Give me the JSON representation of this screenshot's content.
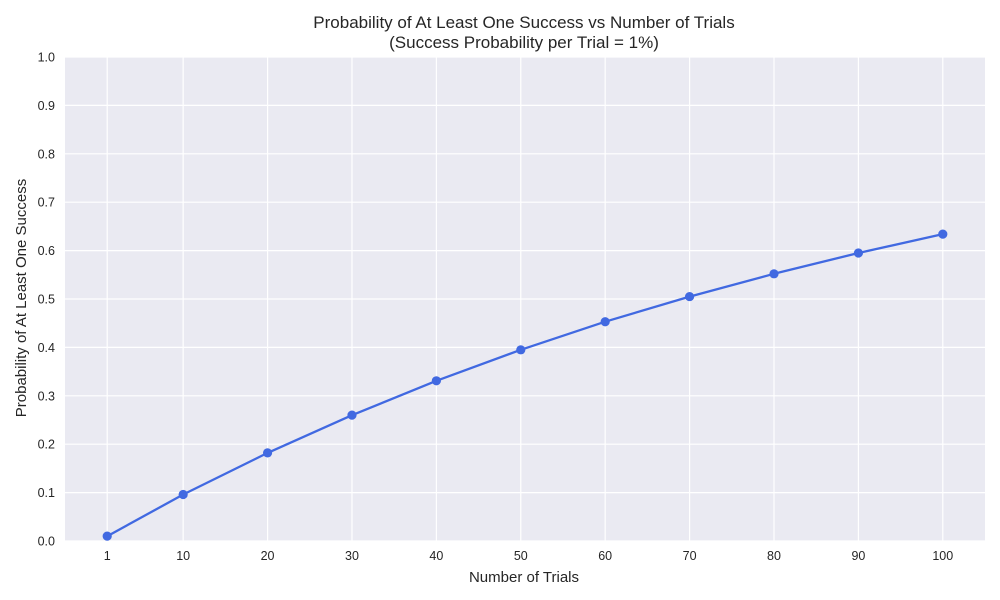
{
  "chart_data": {
    "type": "line",
    "title": "Probability of At Least One Success vs Number of Trials",
    "subtitle": "(Success Probability per Trial = 1%)",
    "xlabel": "Number of Trials",
    "ylabel": "Probability of At Least One Success",
    "x": [
      1,
      10,
      20,
      30,
      40,
      50,
      60,
      70,
      80,
      90,
      100
    ],
    "x_tick_labels": [
      "1",
      "10",
      "20",
      "30",
      "40",
      "50",
      "60",
      "70",
      "80",
      "90",
      "100"
    ],
    "series": [
      {
        "values": [
          0.01,
          0.096,
          0.182,
          0.26,
          0.331,
          0.395,
          0.453,
          0.505,
          0.552,
          0.595,
          0.634
        ],
        "color": "#4169e1"
      }
    ],
    "ylim": [
      0,
      1.0
    ],
    "y_tick_labels": [
      "0.0",
      "0.1",
      "0.2",
      "0.3",
      "0.4",
      "0.5",
      "0.6",
      "0.7",
      "0.8",
      "0.9",
      "1.0"
    ],
    "grid": true,
    "background_color": "#eaeaf2",
    "grid_color": "#ffffff"
  }
}
